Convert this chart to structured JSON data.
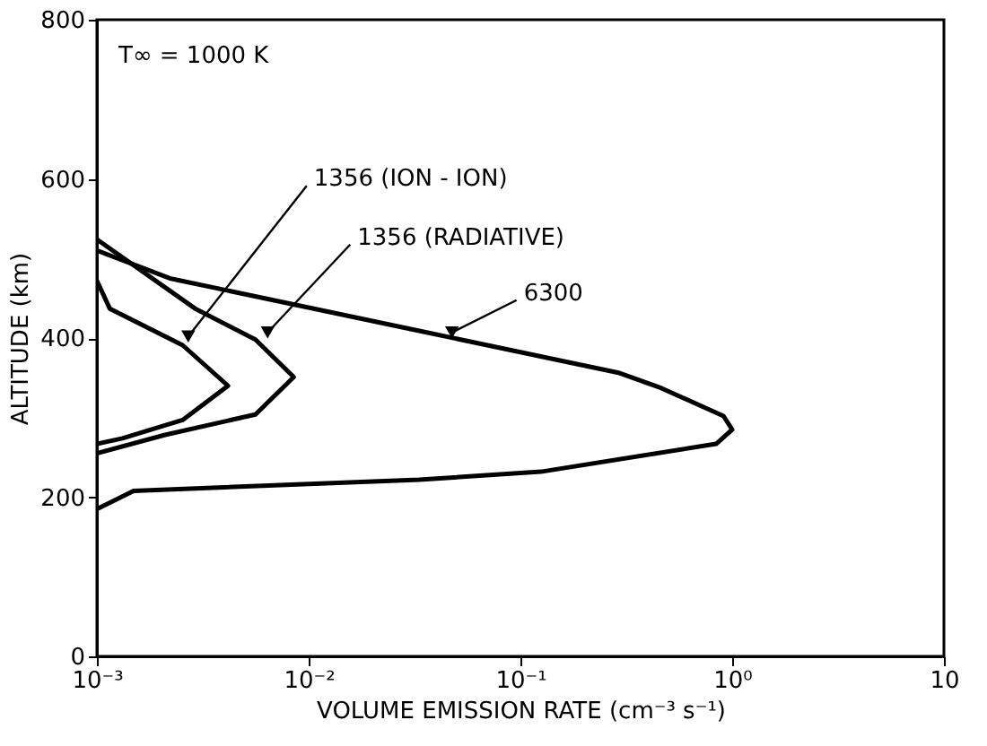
{
  "chart_data": {
    "type": "line",
    "xlabel": "VOLUME EMISSION RATE (cm⁻³ s⁻¹)",
    "ylabel": "ALTITUDE (km)",
    "log": "x",
    "xlim": [
      0.001,
      10
    ],
    "ylim": [
      0,
      800
    ],
    "xticks": [
      {
        "value": 0.001,
        "label": "10⁻³"
      },
      {
        "value": 0.01,
        "label": "10⁻²"
      },
      {
        "value": 0.1,
        "label": "10⁻¹"
      },
      {
        "value": 1,
        "label": "10⁰"
      },
      10
    ],
    "yticks": [
      0,
      200,
      400,
      600,
      800
    ],
    "grid": false,
    "marker": "none",
    "line_style": "solid",
    "series": [
      {
        "color": "#000000",
        "x": [
          0.001,
          0.00115,
          0.00254,
          0.00416,
          0.00254,
          0.00132,
          0.001
        ],
        "values": [
          472,
          437,
          391,
          340,
          297,
          274,
          267
        ]
      },
      {
        "color": "#000000",
        "x": [
          0.001,
          0.00291,
          0.00561,
          0.0085,
          0.00561,
          0.00208,
          0.001
        ],
        "values": [
          524,
          437,
          398,
          351,
          304,
          278,
          255
        ]
      },
      {
        "color": "#000000",
        "x": [
          0.001,
          0.00221,
          0.0333,
          0.294,
          0.464,
          0.91,
          1.0,
          0.84,
          0.125,
          0.0333,
          0.00149,
          0.001
        ],
        "values": [
          510,
          475,
          409,
          356,
          337,
          302,
          285,
          267,
          232,
          222,
          208,
          185
        ]
      }
    ],
    "annotations": [
      "T∞ = 1000 K",
      {
        "text": "1356 (ION - ION)",
        "x": 0.0027,
        "y": 402
      },
      {
        "text": "1356 (RADIATIVE)",
        "x": 0.0064,
        "y": 407
      },
      {
        "text": "6300",
        "x": 0.0475,
        "y": 407
      }
    ]
  }
}
